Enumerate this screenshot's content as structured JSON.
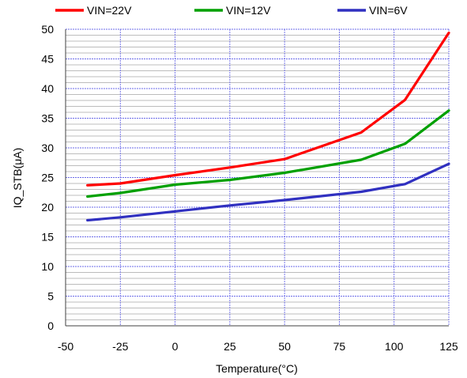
{
  "chart_data": {
    "type": "line",
    "xlabel": "Temperature(°C)",
    "ylabel": "IQ_STB(μA)",
    "xlim": [
      -50,
      125
    ],
    "ylim": [
      0,
      50
    ],
    "x_ticks": [
      "-50",
      "-25",
      "0",
      "25",
      "50",
      "75",
      "100",
      "125"
    ],
    "y_ticks": [
      "0",
      "5",
      "10",
      "15",
      "20",
      "25",
      "30",
      "35",
      "40",
      "45",
      "50"
    ],
    "grid": true,
    "legend_position": "top",
    "series": [
      {
        "name": "VIN=22V",
        "color": "#ff0000",
        "x": [
          -40,
          -25,
          0,
          25,
          50,
          85,
          105,
          125
        ],
        "y": [
          23.7,
          24.0,
          25.4,
          26.7,
          28.1,
          32.6,
          38.1,
          49.4
        ]
      },
      {
        "name": "VIN=12V",
        "color": "#00a000",
        "x": [
          -40,
          -25,
          0,
          25,
          50,
          85,
          105,
          125
        ],
        "y": [
          21.8,
          22.4,
          23.8,
          24.6,
          25.8,
          28.0,
          30.7,
          36.3
        ]
      },
      {
        "name": "VIN=6V",
        "color": "#3030c0",
        "x": [
          -40,
          -25,
          0,
          25,
          50,
          85,
          105,
          125
        ],
        "y": [
          17.8,
          18.3,
          19.3,
          20.3,
          21.2,
          22.6,
          23.9,
          27.3
        ]
      }
    ]
  }
}
